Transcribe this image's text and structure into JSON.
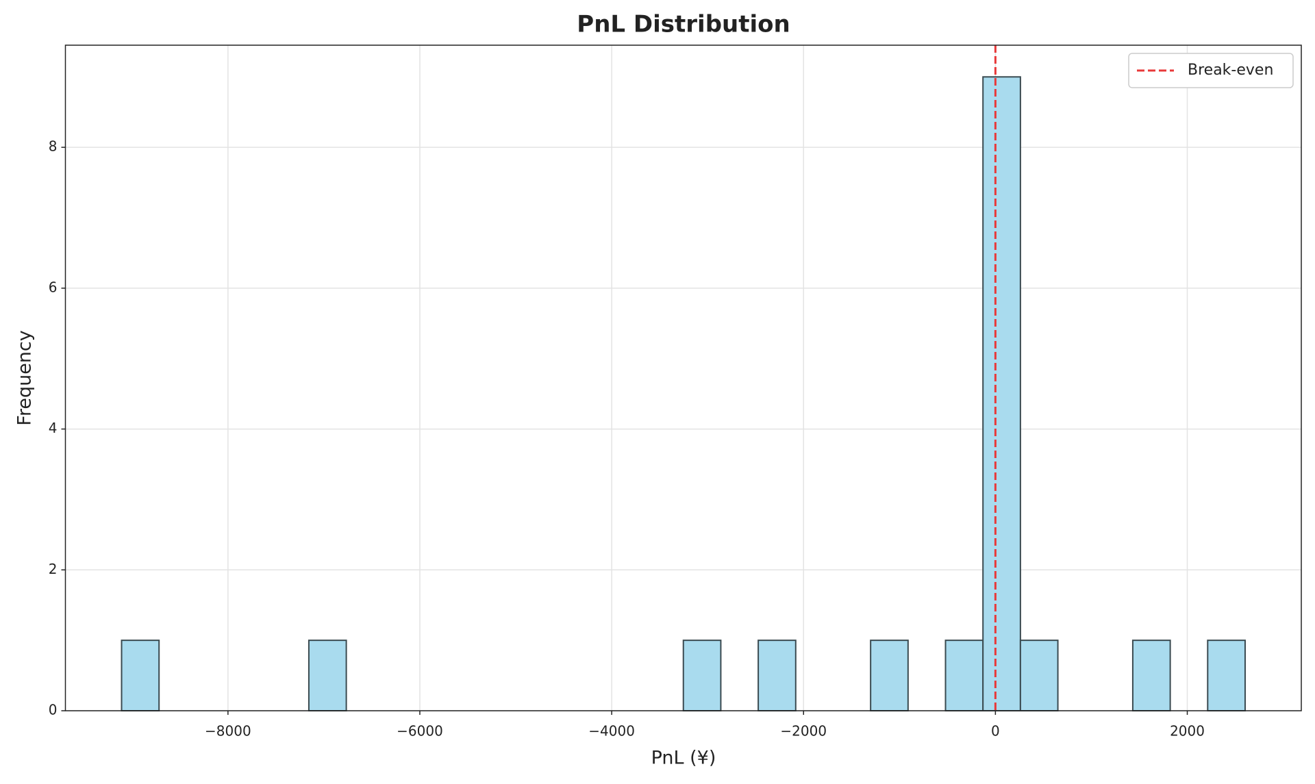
{
  "chart_data": {
    "type": "histogram",
    "title": "PnL Distribution",
    "x_label": "PnL (¥)",
    "y_label": "Frequency",
    "bins": [
      -9109,
      -8718.6,
      -8328.2,
      -7937.8,
      -7547.4,
      -7157,
      -6766.6,
      -6376.2,
      -5985.8,
      -5595.4,
      -5205,
      -4814.6,
      -4424.2,
      -4033.8,
      -3643.4,
      -3253,
      -2862.6,
      -2472.2,
      -2081.8,
      -1691.4,
      -1301,
      -910.6,
      -520.2,
      -129.8,
      260.6,
      651,
      1041.4,
      1431.8,
      1822.2,
      2212.6,
      2603
    ],
    "counts": [
      1,
      0,
      0,
      0,
      0,
      1,
      0,
      0,
      0,
      0,
      0,
      0,
      0,
      0,
      0,
      1,
      0,
      1,
      0,
      0,
      1,
      0,
      1,
      9,
      1,
      0,
      0,
      1,
      0,
      1
    ],
    "color": "#a9dbee",
    "edge_color": "#3a4a50",
    "xlim": [
      -9694.6,
      3188.6
    ],
    "ylim": [
      0,
      9.45
    ],
    "xticks": [
      {
        "value": -8000,
        "label": "−8000"
      },
      {
        "value": -6000,
        "label": "−6000"
      },
      {
        "value": -4000,
        "label": "−4000"
      },
      {
        "value": -2000,
        "label": "−2000"
      },
      0,
      2000
    ],
    "yticks": [
      0,
      2,
      4,
      6,
      8
    ],
    "grid": true,
    "reference_lines": [
      {
        "x": 0,
        "label": "Break-even",
        "color": "#e8393a"
      }
    ],
    "legend_position": "upper right"
  }
}
